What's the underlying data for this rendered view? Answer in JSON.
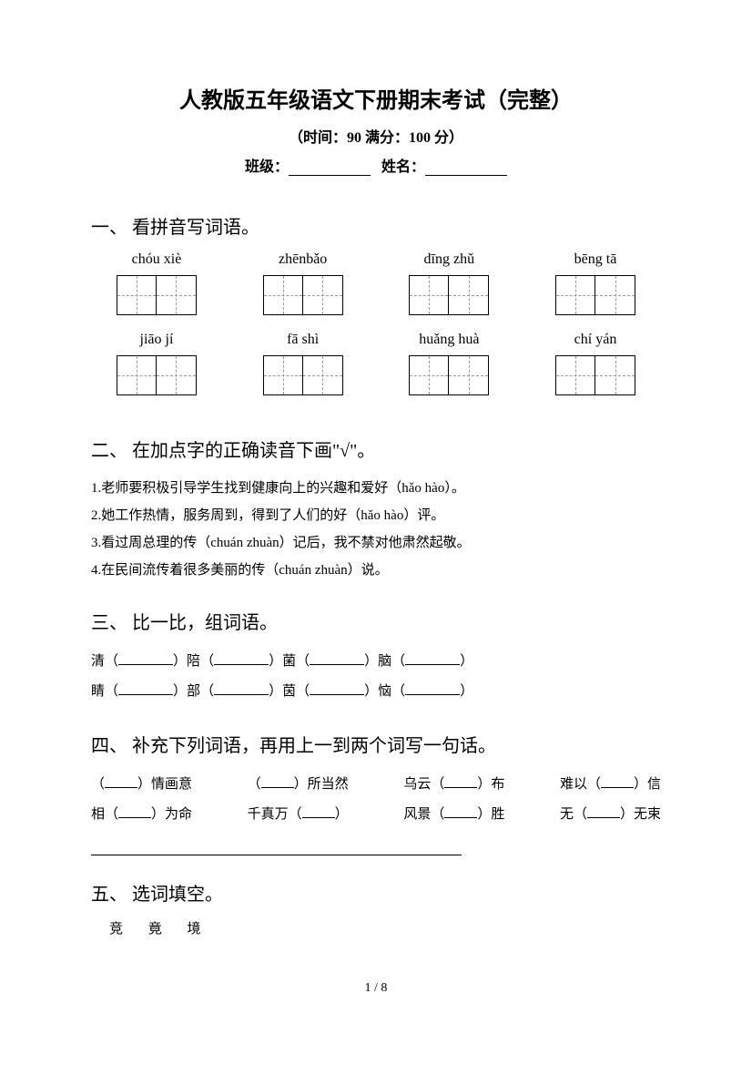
{
  "header": {
    "title": "人教版五年级语文下册期末考试（完整）",
    "time_score": "（时间：90   满分：100 分）",
    "class_label": "班级：",
    "name_label": "姓名："
  },
  "section1": {
    "heading": "一、 看拼音写词语。",
    "items": [
      {
        "pinyin": "chóu xiè"
      },
      {
        "pinyin": "zhēnbǎo"
      },
      {
        "pinyin": "dīng zhǔ"
      },
      {
        "pinyin": "bēng tā"
      },
      {
        "pinyin": "jiāo jí"
      },
      {
        "pinyin": "fā   shì"
      },
      {
        "pinyin": "huǎng huà"
      },
      {
        "pinyin": "chí yán"
      }
    ]
  },
  "section2": {
    "heading": "二、 在加点字的正确读音下画\"√\"。",
    "lines": [
      "1.老师要积极引导学生找到健康向上的兴趣和爱好（hǎo hào）。",
      "2.她工作热情，服务周到，得到了人们的好（hǎo hào）评。",
      "3.看过周总理的传（chuán zhuàn）记后，我不禁对他肃然起敬。",
      "4.在民间流传着很多美丽的传（chuán zhuàn）说。"
    ]
  },
  "section3": {
    "heading": "三、 比一比，组词语。",
    "row1": [
      "清",
      "陪",
      "菌",
      "脑"
    ],
    "row2": [
      "睛",
      "部",
      "茵",
      "恼"
    ]
  },
  "section4": {
    "heading": "四、 补充下列词语，再用上一到两个词写一句话。",
    "row1": [
      {
        "pre": "（",
        "post": "）情画意"
      },
      {
        "pre": "（",
        "post": "）所当然"
      },
      {
        "pre": "乌云（",
        "post": "）布"
      },
      {
        "pre": "难以（",
        "post": "）信"
      }
    ],
    "row2": [
      {
        "pre": "相（",
        "post": "）为命"
      },
      {
        "pre": "千真万（",
        "post": "）"
      },
      {
        "pre": "风景（",
        "post": "）胜"
      },
      {
        "pre": "无（",
        "post": "）无束"
      }
    ]
  },
  "section5": {
    "heading": "五、 选词填空。",
    "words": "竞  竟  境"
  },
  "footer": {
    "page": "1 / 8"
  },
  "colors": {
    "text": "#000000",
    "background": "#ffffff",
    "dash": "#999999"
  }
}
